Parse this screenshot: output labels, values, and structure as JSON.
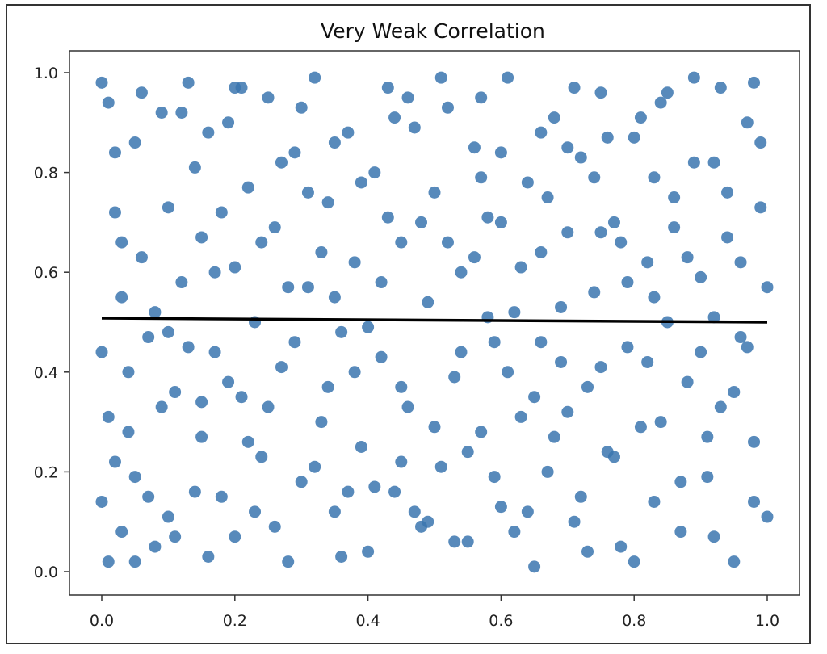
{
  "chart_data": {
    "type": "scatter",
    "title": "Very Weak Correlation",
    "xlabel": "",
    "ylabel": "",
    "xlim": [
      -0.05,
      1.05
    ],
    "ylim": [
      -0.05,
      1.05
    ],
    "xticks": [
      "0.0",
      "0.2",
      "0.4",
      "0.6",
      "0.8",
      "1.0"
    ],
    "yticks": [
      "0.0",
      "0.2",
      "0.4",
      "0.6",
      "0.8",
      "1.0"
    ],
    "grid": false,
    "point_color": "#3b75af",
    "line_color": "#000000",
    "regression_line": {
      "x": [
        0.0,
        1.0
      ],
      "y": [
        0.508,
        0.5
      ]
    },
    "note_points": "approx. 2000 uniformly distributed points; representative sample listed",
    "points": [
      [
        0.0,
        0.98
      ],
      [
        0.01,
        0.94
      ],
      [
        0.02,
        0.72
      ],
      [
        0.03,
        0.55
      ],
      [
        0.01,
        0.31
      ],
      [
        0.02,
        0.22
      ],
      [
        0.0,
        0.14
      ],
      [
        0.01,
        0.02
      ],
      [
        0.03,
        0.08
      ],
      [
        0.04,
        0.4
      ],
      [
        0.05,
        0.86
      ],
      [
        0.06,
        0.63
      ],
      [
        0.07,
        0.47
      ],
      [
        0.05,
        0.19
      ],
      [
        0.08,
        0.05
      ],
      [
        0.09,
        0.92
      ],
      [
        0.1,
        0.73
      ],
      [
        0.11,
        0.36
      ],
      [
        0.1,
        0.11
      ],
      [
        0.12,
        0.58
      ],
      [
        0.13,
        0.98
      ],
      [
        0.14,
        0.81
      ],
      [
        0.15,
        0.27
      ],
      [
        0.16,
        0.03
      ],
      [
        0.15,
        0.67
      ],
      [
        0.17,
        0.44
      ],
      [
        0.18,
        0.15
      ],
      [
        0.19,
        0.9
      ],
      [
        0.2,
        0.61
      ],
      [
        0.21,
        0.35
      ],
      [
        0.2,
        0.07
      ],
      [
        0.22,
        0.77
      ],
      [
        0.23,
        0.5
      ],
      [
        0.24,
        0.23
      ],
      [
        0.25,
        0.95
      ],
      [
        0.26,
        0.69
      ],
      [
        0.27,
        0.41
      ],
      [
        0.28,
        0.02
      ],
      [
        0.29,
        0.84
      ],
      [
        0.3,
        0.18
      ],
      [
        0.31,
        0.57
      ],
      [
        0.32,
        0.99
      ],
      [
        0.33,
        0.3
      ],
      [
        0.34,
        0.74
      ],
      [
        0.35,
        0.12
      ],
      [
        0.36,
        0.48
      ],
      [
        0.37,
        0.88
      ],
      [
        0.38,
        0.62
      ],
      [
        0.39,
        0.25
      ],
      [
        0.4,
        0.04
      ],
      [
        0.41,
        0.8
      ],
      [
        0.42,
        0.43
      ],
      [
        0.43,
        0.97
      ],
      [
        0.44,
        0.16
      ],
      [
        0.45,
        0.66
      ],
      [
        0.46,
        0.33
      ],
      [
        0.47,
        0.89
      ],
      [
        0.48,
        0.09
      ],
      [
        0.49,
        0.54
      ],
      [
        0.5,
        0.76
      ],
      [
        0.51,
        0.21
      ],
      [
        0.52,
        0.93
      ],
      [
        0.53,
        0.39
      ],
      [
        0.54,
        0.6
      ],
      [
        0.55,
        0.06
      ],
      [
        0.56,
        0.85
      ],
      [
        0.57,
        0.28
      ],
      [
        0.58,
        0.71
      ],
      [
        0.59,
        0.46
      ],
      [
        0.6,
        0.13
      ],
      [
        0.61,
        0.99
      ],
      [
        0.62,
        0.52
      ],
      [
        0.63,
        0.31
      ],
      [
        0.64,
        0.78
      ],
      [
        0.65,
        0.01
      ],
      [
        0.66,
        0.64
      ],
      [
        0.67,
        0.2
      ],
      [
        0.68,
        0.91
      ],
      [
        0.69,
        0.42
      ],
      [
        0.7,
        0.68
      ],
      [
        0.71,
        0.1
      ],
      [
        0.72,
        0.83
      ],
      [
        0.73,
        0.37
      ],
      [
        0.74,
        0.56
      ],
      [
        0.75,
        0.96
      ],
      [
        0.76,
        0.24
      ],
      [
        0.77,
        0.7
      ],
      [
        0.78,
        0.05
      ],
      [
        0.79,
        0.45
      ],
      [
        0.8,
        0.87
      ],
      [
        0.81,
        0.29
      ],
      [
        0.82,
        0.62
      ],
      [
        0.83,
        0.14
      ],
      [
        0.84,
        0.94
      ],
      [
        0.85,
        0.5
      ],
      [
        0.86,
        0.75
      ],
      [
        0.87,
        0.08
      ],
      [
        0.88,
        0.38
      ],
      [
        0.89,
        0.99
      ],
      [
        0.9,
        0.59
      ],
      [
        0.91,
        0.19
      ],
      [
        0.92,
        0.82
      ],
      [
        0.93,
        0.33
      ],
      [
        0.94,
        0.67
      ],
      [
        0.95,
        0.02
      ],
      [
        0.96,
        0.47
      ],
      [
        0.97,
        0.9
      ],
      [
        0.98,
        0.26
      ],
      [
        0.99,
        0.73
      ],
      [
        1.0,
        0.11
      ],
      [
        0.02,
        0.84
      ],
      [
        0.04,
        0.28
      ],
      [
        0.06,
        0.96
      ],
      [
        0.08,
        0.52
      ],
      [
        0.09,
        0.33
      ],
      [
        0.11,
        0.07
      ],
      [
        0.13,
        0.45
      ],
      [
        0.14,
        0.16
      ],
      [
        0.16,
        0.88
      ],
      [
        0.17,
        0.6
      ],
      [
        0.19,
        0.38
      ],
      [
        0.21,
        0.97
      ],
      [
        0.22,
        0.26
      ],
      [
        0.24,
        0.66
      ],
      [
        0.26,
        0.09
      ],
      [
        0.27,
        0.82
      ],
      [
        0.29,
        0.46
      ],
      [
        0.3,
        0.93
      ],
      [
        0.32,
        0.21
      ],
      [
        0.33,
        0.64
      ],
      [
        0.35,
        0.86
      ],
      [
        0.36,
        0.03
      ],
      [
        0.38,
        0.4
      ],
      [
        0.39,
        0.78
      ],
      [
        0.41,
        0.17
      ],
      [
        0.42,
        0.58
      ],
      [
        0.44,
        0.91
      ],
      [
        0.45,
        0.37
      ],
      [
        0.47,
        0.12
      ],
      [
        0.48,
        0.7
      ],
      [
        0.5,
        0.29
      ],
      [
        0.51,
        0.99
      ],
      [
        0.53,
        0.06
      ],
      [
        0.54,
        0.44
      ],
      [
        0.56,
        0.63
      ],
      [
        0.57,
        0.95
      ],
      [
        0.59,
        0.19
      ],
      [
        0.6,
        0.84
      ],
      [
        0.62,
        0.08
      ],
      [
        0.63,
        0.61
      ],
      [
        0.65,
        0.35
      ],
      [
        0.66,
        0.88
      ],
      [
        0.68,
        0.27
      ],
      [
        0.69,
        0.53
      ],
      [
        0.71,
        0.97
      ],
      [
        0.72,
        0.15
      ],
      [
        0.74,
        0.79
      ],
      [
        0.75,
        0.41
      ],
      [
        0.77,
        0.23
      ],
      [
        0.78,
        0.66
      ],
      [
        0.8,
        0.02
      ],
      [
        0.81,
        0.91
      ],
      [
        0.83,
        0.55
      ],
      [
        0.84,
        0.3
      ],
      [
        0.86,
        0.69
      ],
      [
        0.87,
        0.18
      ],
      [
        0.89,
        0.82
      ],
      [
        0.9,
        0.44
      ],
      [
        0.92,
        0.07
      ],
      [
        0.93,
        0.97
      ],
      [
        0.95,
        0.36
      ],
      [
        0.96,
        0.62
      ],
      [
        0.98,
        0.14
      ],
      [
        0.99,
        0.86
      ],
      [
        0.0,
        0.44
      ],
      [
        1.0,
        0.57
      ],
      [
        0.12,
        0.92
      ],
      [
        0.18,
        0.72
      ],
      [
        0.23,
        0.12
      ],
      [
        0.28,
        0.57
      ],
      [
        0.34,
        0.37
      ],
      [
        0.37,
        0.16
      ],
      [
        0.43,
        0.71
      ],
      [
        0.46,
        0.95
      ],
      [
        0.52,
        0.66
      ],
      [
        0.55,
        0.24
      ],
      [
        0.58,
        0.51
      ],
      [
        0.61,
        0.4
      ],
      [
        0.64,
        0.12
      ],
      [
        0.67,
        0.75
      ],
      [
        0.7,
        0.32
      ],
      [
        0.73,
        0.04
      ],
      [
        0.76,
        0.87
      ],
      [
        0.79,
        0.58
      ],
      [
        0.82,
        0.42
      ],
      [
        0.85,
        0.96
      ],
      [
        0.88,
        0.63
      ],
      [
        0.91,
        0.27
      ],
      [
        0.94,
        0.76
      ],
      [
        0.97,
        0.45
      ],
      [
        0.03,
        0.66
      ],
      [
        0.07,
        0.15
      ],
      [
        0.1,
        0.48
      ],
      [
        0.15,
        0.34
      ],
      [
        0.25,
        0.33
      ],
      [
        0.31,
        0.76
      ],
      [
        0.4,
        0.49
      ],
      [
        0.49,
        0.1
      ],
      [
        0.57,
        0.79
      ],
      [
        0.66,
        0.46
      ],
      [
        0.75,
        0.68
      ],
      [
        0.83,
        0.79
      ],
      [
        0.92,
        0.51
      ],
      [
        0.98,
        0.98
      ],
      [
        0.05,
        0.02
      ],
      [
        0.2,
        0.97
      ],
      [
        0.35,
        0.55
      ],
      [
        0.45,
        0.22
      ],
      [
        0.6,
        0.7
      ],
      [
        0.7,
        0.85
      ]
    ]
  }
}
